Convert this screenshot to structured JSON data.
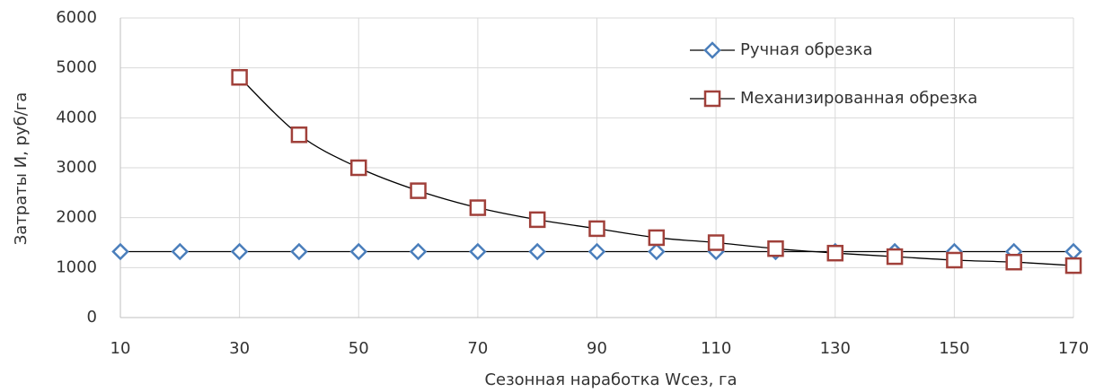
{
  "chart_data": {
    "type": "line",
    "xlabel": "Сезонная наработка Wсез, га",
    "ylabel": "Затраты  И, руб/га",
    "xlim": [
      10,
      170
    ],
    "xticks": [
      10,
      30,
      50,
      70,
      90,
      110,
      130,
      150,
      170
    ],
    "ylim": [
      0,
      6000
    ],
    "yticks": [
      0,
      1000,
      2000,
      3000,
      4000,
      5000,
      6000
    ],
    "grid": true,
    "smooth": true,
    "line_color": "#000000",
    "legend": "upper right",
    "series": [
      {
        "name": "Ручная обрезка",
        "color": "#4a7ebb",
        "marker": "diamond",
        "x": [
          10,
          20,
          30,
          40,
          50,
          60,
          70,
          80,
          90,
          100,
          110,
          120,
          130,
          140,
          150,
          160,
          170
        ],
        "values": [
          1320,
          1320,
          1320,
          1320,
          1320,
          1320,
          1320,
          1320,
          1320,
          1320,
          1320,
          1320,
          1320,
          1320,
          1320,
          1320,
          1320
        ]
      },
      {
        "name": "Механизированная обрезка",
        "color": "#a0403a",
        "marker": "square",
        "x": [
          30,
          40,
          50,
          60,
          70,
          80,
          90,
          100,
          110,
          120,
          130,
          140,
          150,
          160,
          170
        ],
        "values": [
          4810,
          3660,
          3000,
          2540,
          2200,
          1960,
          1780,
          1600,
          1500,
          1380,
          1290,
          1220,
          1150,
          1110,
          1040
        ]
      }
    ]
  }
}
